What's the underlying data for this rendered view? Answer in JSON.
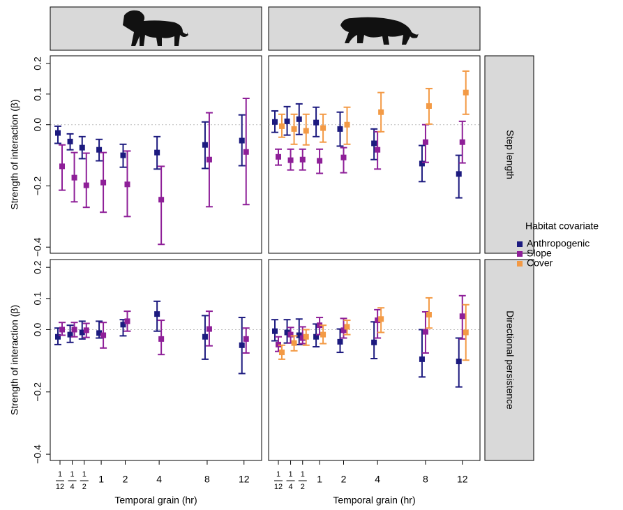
{
  "chart_data": [
    {
      "type": "errorbar",
      "animal": "lion",
      "ylabel": "Strength of interaction (β)",
      "x": [
        0.0833,
        0.25,
        0.5,
        1,
        2,
        4,
        8,
        12
      ],
      "xscale": "sqrt",
      "xlim": [
        0.0144,
        14.2
      ],
      "ylim": [
        -0.42,
        0.225
      ],
      "yticks": [
        {
          "value": -0.4,
          "label": "−0.4"
        },
        {
          "value": -0.2,
          "label": "−0.2"
        },
        {
          "value": 0,
          "label": "0.0"
        },
        0.1,
        0.2
      ],
      "reference_line": 0,
      "series": [
        {
          "name": "Anthropogenic",
          "color": "#1c1a7f",
          "values": [
            -0.027,
            -0.055,
            -0.075,
            -0.082,
            -0.1,
            -0.091,
            -0.066,
            -0.052
          ],
          "lower": [
            -0.061,
            -0.082,
            -0.111,
            -0.118,
            -0.139,
            -0.145,
            -0.143,
            -0.134
          ],
          "upper": [
            -0.005,
            -0.03,
            -0.039,
            -0.048,
            -0.064,
            -0.039,
            0.009,
            0.032
          ]
        },
        {
          "name": "Slope",
          "color": "#8e1f98",
          "values": [
            -0.136,
            -0.173,
            -0.198,
            -0.189,
            -0.195,
            -0.245,
            -0.114,
            -0.089
          ],
          "lower": [
            -0.214,
            -0.252,
            -0.27,
            -0.286,
            -0.3,
            -0.391,
            -0.268,
            -0.261
          ],
          "upper": [
            -0.066,
            -0.091,
            -0.093,
            -0.091,
            -0.086,
            -0.136,
            0.039,
            0.086
          ]
        }
      ]
    },
    {
      "type": "errorbar",
      "animal": "tiger",
      "facet_row": "Step length",
      "x": [
        0.0833,
        0.25,
        0.5,
        1,
        2,
        4,
        8,
        12
      ],
      "xscale": "sqrt",
      "xlim": [
        0.0144,
        14.2
      ],
      "ylim": [
        -0.42,
        0.225
      ],
      "reference_line": 0,
      "series": [
        {
          "name": "Anthropogenic",
          "color": "#1c1a7f",
          "values": [
            0.009,
            0.011,
            0.018,
            0.007,
            -0.014,
            -0.061,
            -0.127,
            -0.161
          ],
          "lower": [
            -0.025,
            -0.034,
            -0.032,
            -0.039,
            -0.07,
            -0.114,
            -0.186,
            -0.239
          ],
          "upper": [
            0.045,
            0.059,
            0.068,
            0.057,
            0.041,
            -0.014,
            -0.068,
            -0.1
          ]
        },
        {
          "name": "Slope",
          "color": "#8e1f98",
          "values": [
            -0.105,
            -0.116,
            -0.114,
            -0.118,
            -0.107,
            -0.082,
            -0.057,
            -0.057
          ],
          "lower": [
            -0.132,
            -0.148,
            -0.148,
            -0.159,
            -0.157,
            -0.145,
            -0.123,
            -0.125
          ],
          "upper": [
            -0.08,
            -0.08,
            -0.08,
            -0.08,
            -0.075,
            -0.023,
            0,
            0.011
          ]
        },
        {
          "name": "Cover",
          "color": "#f39a45",
          "values": [
            -0.005,
            -0.014,
            -0.02,
            -0.011,
            0,
            0.041,
            0.061,
            0.105
          ],
          "lower": [
            -0.041,
            -0.064,
            -0.066,
            -0.057,
            -0.064,
            -0.023,
            0.002,
            0.034
          ],
          "upper": [
            0.034,
            0.034,
            0.034,
            0.034,
            0.057,
            0.105,
            0.118,
            0.175
          ]
        }
      ]
    },
    {
      "type": "errorbar",
      "ylabel": "Strength of interaction (β)",
      "xlabel": "Temporal grain (hr)",
      "x": [
        0.0833,
        0.25,
        0.5,
        1,
        2,
        4,
        8,
        12
      ],
      "xscale": "sqrt",
      "xlim": [
        0.0144,
        14.2
      ],
      "ylim": [
        -0.42,
        0.225
      ],
      "xticks": [
        {
          "value": 0.0833,
          "label": "1/12"
        },
        {
          "value": 0.25,
          "label": "1/4"
        },
        {
          "value": 0.5,
          "label": "1/2"
        },
        1,
        2,
        4,
        8,
        12
      ],
      "yticks": [
        {
          "value": -0.4,
          "label": "−0.4"
        },
        {
          "value": -0.2,
          "label": "−0.2"
        },
        {
          "value": 0,
          "label": "0.0"
        },
        0.1,
        0.2
      ],
      "reference_line": 0,
      "series": [
        {
          "name": "Anthropogenic",
          "color": "#1c1a7f",
          "values": [
            -0.023,
            -0.016,
            -0.009,
            -0.011,
            0.016,
            0.05,
            -0.023,
            -0.05
          ],
          "lower": [
            -0.048,
            -0.041,
            -0.03,
            -0.027,
            -0.02,
            -0.005,
            -0.095,
            -0.141
          ],
          "upper": [
            0.005,
            0.014,
            0.027,
            0.027,
            0.032,
            0.091,
            0.045,
            0.039
          ]
        },
        {
          "name": "Slope",
          "color": "#8e1f98",
          "values": [
            0,
            0,
            -0.002,
            -0.018,
            0.027,
            -0.03,
            0.002,
            -0.03
          ],
          "lower": [
            -0.018,
            -0.023,
            -0.025,
            -0.059,
            -0.005,
            -0.08,
            -0.052,
            -0.075
          ],
          "upper": [
            0.023,
            0.023,
            0.02,
            0.023,
            0.059,
            0.03,
            0.059,
            0.005
          ]
        }
      ]
    },
    {
      "type": "errorbar",
      "facet_row": "Directional  persistence",
      "xlabel": "Temporal grain (hr)",
      "x": [
        0.0833,
        0.25,
        0.5,
        1,
        2,
        4,
        8,
        12
      ],
      "xscale": "sqrt",
      "xlim": [
        0.0144,
        14.2
      ],
      "ylim": [
        -0.42,
        0.225
      ],
      "xticks": [
        {
          "value": 0.0833,
          "label": "1/12"
        },
        {
          "value": 0.25,
          "label": "1/4"
        },
        {
          "value": 0.5,
          "label": "1/2"
        },
        1,
        2,
        4,
        8,
        12
      ],
      "reference_line": 0,
      "series": [
        {
          "name": "Anthropogenic",
          "color": "#1c1a7f",
          "values": [
            -0.005,
            -0.009,
            -0.018,
            -0.023,
            -0.039,
            -0.041,
            -0.095,
            -0.102
          ],
          "lower": [
            -0.036,
            -0.043,
            -0.048,
            -0.055,
            -0.073,
            -0.093,
            -0.152,
            -0.184
          ],
          "upper": [
            0.032,
            0.032,
            0.034,
            0.018,
            0.002,
            0.025,
            0,
            -0.027
          ]
        },
        {
          "name": "Slope",
          "color": "#8e1f98",
          "values": [
            -0.048,
            -0.016,
            -0.027,
            0.014,
            -0.002,
            0.03,
            -0.007,
            0.043
          ],
          "lower": [
            -0.07,
            -0.043,
            -0.045,
            -0.016,
            -0.027,
            -0.027,
            -0.075,
            -0.03
          ],
          "upper": [
            -0.023,
            0.007,
            0.009,
            0.039,
            0.036,
            0.064,
            0.057,
            0.109
          ]
        },
        {
          "name": "Cover",
          "color": "#f39a45",
          "values": [
            -0.073,
            -0.043,
            -0.023,
            -0.016,
            0.009,
            0.034,
            0.048,
            -0.009
          ],
          "lower": [
            -0.095,
            -0.068,
            -0.05,
            -0.045,
            -0.016,
            -0.009,
            0.005,
            -0.098
          ],
          "upper": [
            -0.05,
            -0.02,
            0,
            0.014,
            0.03,
            0.07,
            0.102,
            0.08
          ]
        }
      ]
    }
  ],
  "legend": {
    "title": "Habitat covariate"
  }
}
